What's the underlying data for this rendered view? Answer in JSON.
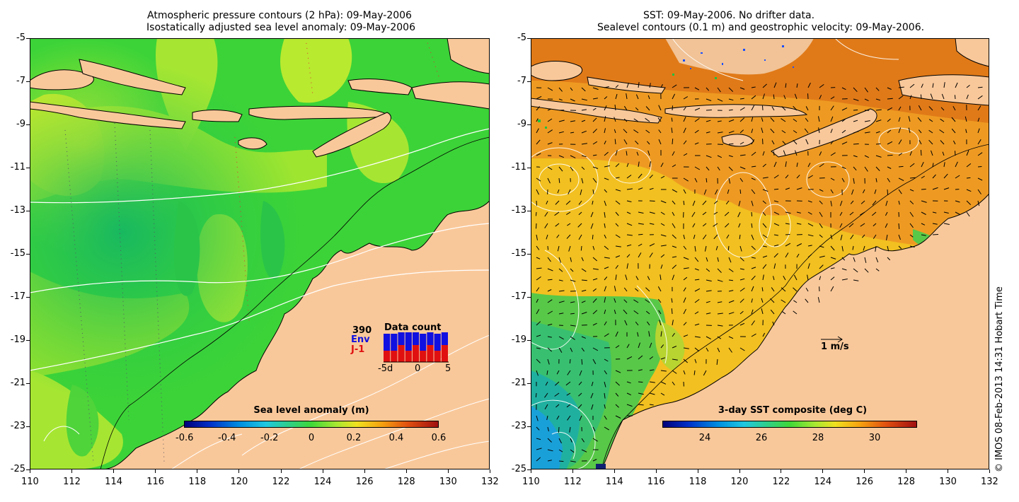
{
  "left_panel": {
    "title_line1": "Atmospheric pressure contours (2 hPa): 09-May-2006",
    "title_line2": "Isostatically adjusted sea level anomaly: 09-May-2006",
    "x_ticks": [
      "110",
      "112",
      "114",
      "116",
      "118",
      "120",
      "122",
      "124",
      "126",
      "128",
      "130",
      "132"
    ],
    "y_ticks": [
      "-5",
      "-7",
      "-9",
      "-11",
      "-13",
      "-15",
      "-17",
      "-19",
      "-21",
      "-23",
      "-25"
    ],
    "colorbar": {
      "title": "Sea level anomaly (m)",
      "labels": [
        "-0.6",
        "-0.4",
        "-0.2",
        "0",
        "0.2",
        "0.4",
        "0.6"
      ],
      "range": [
        -0.6,
        0.6
      ]
    },
    "data_count": {
      "title": "Data count",
      "total": "390",
      "series1": "Env",
      "series2": "J-1",
      "series1_color": "#1010e0",
      "series2_color": "#e01010",
      "axis_labels": [
        "-5d",
        "0",
        "5"
      ],
      "env_values": [
        3,
        3,
        3,
        4,
        3,
        3,
        4,
        3,
        3
      ],
      "j1_values": [
        2,
        2,
        3,
        2,
        3,
        2,
        3,
        2,
        3
      ]
    }
  },
  "right_panel": {
    "title_line1": "SST: 09-May-2006. No drifter data.",
    "title_line2": "Sealevel contours (0.1 m) and geostrophic velocity: 09-May-2006.",
    "x_ticks": [
      "110",
      "112",
      "114",
      "116",
      "118",
      "120",
      "122",
      "124",
      "126",
      "128",
      "130",
      "132"
    ],
    "y_ticks": [
      "-5",
      "-7",
      "-9",
      "-11",
      "-13",
      "-15",
      "-17",
      "-19",
      "-21",
      "-23",
      "-25"
    ],
    "colorbar": {
      "title": "3-day SST composite (deg C)",
      "labels": [
        "24",
        "26",
        "28",
        "30"
      ],
      "range": [
        22.5,
        31.5
      ]
    },
    "velocity_scale_label": "1 m/s"
  },
  "credit": "© IMOS 08-Feb-2013 14:31 Hobart Time",
  "colors": {
    "land": "#f9c89a",
    "sla_green": "#3fd53a",
    "sla_yellowgreen": "#a8e834",
    "sst_orange": "#f0a020",
    "sst_yellow": "#f5d020"
  }
}
